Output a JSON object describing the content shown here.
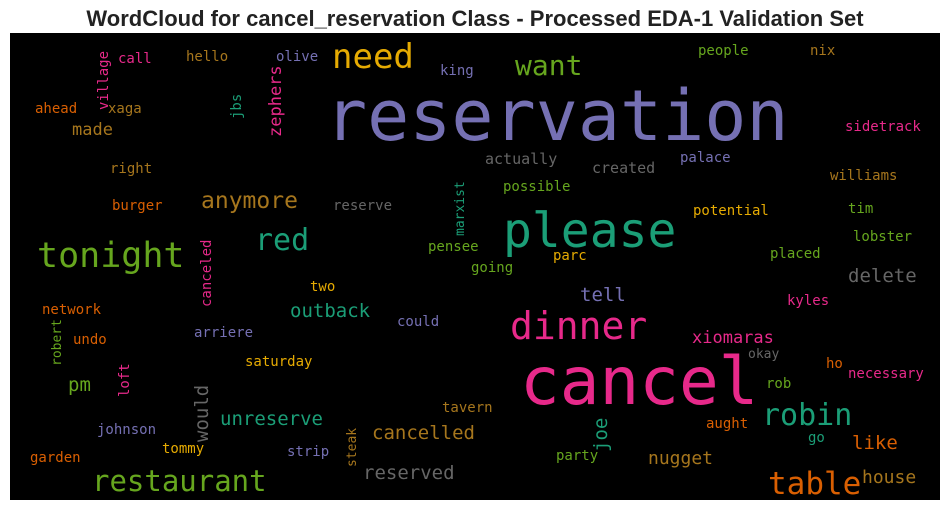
{
  "title": "WordCloud for cancel_reservation Class - Processed EDA-1 Validation Set",
  "words": [
    {
      "text": "reservation",
      "color": "#7570b3"
    },
    {
      "text": "cancel",
      "color": "#e7298a"
    },
    {
      "text": "please",
      "color": "#1b9e77"
    },
    {
      "text": "tonight",
      "color": "#66a61e"
    },
    {
      "text": "dinner",
      "color": "#e7298a"
    },
    {
      "text": "need",
      "color": "#e6ab02"
    },
    {
      "text": "want",
      "color": "#66a61e"
    },
    {
      "text": "red",
      "color": "#1b9e77"
    },
    {
      "text": "restaurant",
      "color": "#66a61e"
    },
    {
      "text": "table",
      "color": "#d95f02"
    },
    {
      "text": "robin",
      "color": "#1b9e77"
    },
    {
      "text": "anymore",
      "color": "#a6761d"
    },
    {
      "text": "cancelled",
      "color": "#a6761d"
    },
    {
      "text": "delete",
      "color": "#666666"
    },
    {
      "text": "outback",
      "color": "#1b9e77"
    },
    {
      "text": "tell",
      "color": "#7570b3"
    },
    {
      "text": "xiomaras",
      "color": "#e7298a"
    },
    {
      "text": "pm",
      "color": "#66a61e"
    },
    {
      "text": "unreserve",
      "color": "#1b9e77"
    },
    {
      "text": "nugget",
      "color": "#a6761d"
    },
    {
      "text": "like",
      "color": "#d95f02"
    },
    {
      "text": "house",
      "color": "#a6761d"
    },
    {
      "text": "reserved",
      "color": "#666666"
    },
    {
      "text": "made",
      "color": "#a6761d"
    },
    {
      "text": "would",
      "color": "#666666"
    },
    {
      "text": "joe",
      "color": "#1b9e77"
    },
    {
      "text": "zephers",
      "color": "#e7298a"
    },
    {
      "text": "canceled",
      "color": "#e7298a"
    },
    {
      "text": "village",
      "color": "#e7298a"
    },
    {
      "text": "jbs",
      "color": "#1b9e77"
    },
    {
      "text": "marxist",
      "color": "#1b9e77"
    },
    {
      "text": "robert",
      "color": "#66a61e"
    },
    {
      "text": "loft",
      "color": "#e7298a"
    },
    {
      "text": "steak",
      "color": "#a6761d"
    },
    {
      "text": "call",
      "color": "#e7298a"
    },
    {
      "text": "hello",
      "color": "#a6761d"
    },
    {
      "text": "olive",
      "color": "#7570b3"
    },
    {
      "text": "king",
      "color": "#7570b3"
    },
    {
      "text": "people",
      "color": "#66a61e"
    },
    {
      "text": "nix",
      "color": "#a6761d"
    },
    {
      "text": "ahead",
      "color": "#d95f02"
    },
    {
      "text": "xaga",
      "color": "#a6761d"
    },
    {
      "text": "sidetrack",
      "color": "#e7298a"
    },
    {
      "text": "right",
      "color": "#a6761d"
    },
    {
      "text": "actually",
      "color": "#666666"
    },
    {
      "text": "created",
      "color": "#666666"
    },
    {
      "text": "palace",
      "color": "#7570b3"
    },
    {
      "text": "williams",
      "color": "#a6761d"
    },
    {
      "text": "possible",
      "color": "#66a61e"
    },
    {
      "text": "burger",
      "color": "#d95f02"
    },
    {
      "text": "reserve",
      "color": "#666666"
    },
    {
      "text": "potential",
      "color": "#e6ab02"
    },
    {
      "text": "tim",
      "color": "#66a61e"
    },
    {
      "text": "pensee",
      "color": "#66a61e"
    },
    {
      "text": "lobster",
      "color": "#66a61e"
    },
    {
      "text": "placed",
      "color": "#66a61e"
    },
    {
      "text": "parc",
      "color": "#e6ab02"
    },
    {
      "text": "going",
      "color": "#66a61e"
    },
    {
      "text": "two",
      "color": "#e6ab02"
    },
    {
      "text": "kyles",
      "color": "#e7298a"
    },
    {
      "text": "network",
      "color": "#d95f02"
    },
    {
      "text": "could",
      "color": "#7570b3"
    },
    {
      "text": "arriere",
      "color": "#7570b3"
    },
    {
      "text": "undo",
      "color": "#d95f02"
    },
    {
      "text": "okay",
      "color": "#666666"
    },
    {
      "text": "saturday",
      "color": "#e6ab02"
    },
    {
      "text": "ho",
      "color": "#d95f02"
    },
    {
      "text": "necessary",
      "color": "#e7298a"
    },
    {
      "text": "rob",
      "color": "#66a61e"
    },
    {
      "text": "tavern",
      "color": "#a6761d"
    },
    {
      "text": "aught",
      "color": "#d95f02"
    },
    {
      "text": "johnson",
      "color": "#7570b3"
    },
    {
      "text": "go",
      "color": "#1b9e77"
    },
    {
      "text": "tommy",
      "color": "#e6ab02"
    },
    {
      "text": "strip",
      "color": "#7570b3"
    },
    {
      "text": "party",
      "color": "#66a61e"
    },
    {
      "text": "garden",
      "color": "#d95f02"
    }
  ]
}
